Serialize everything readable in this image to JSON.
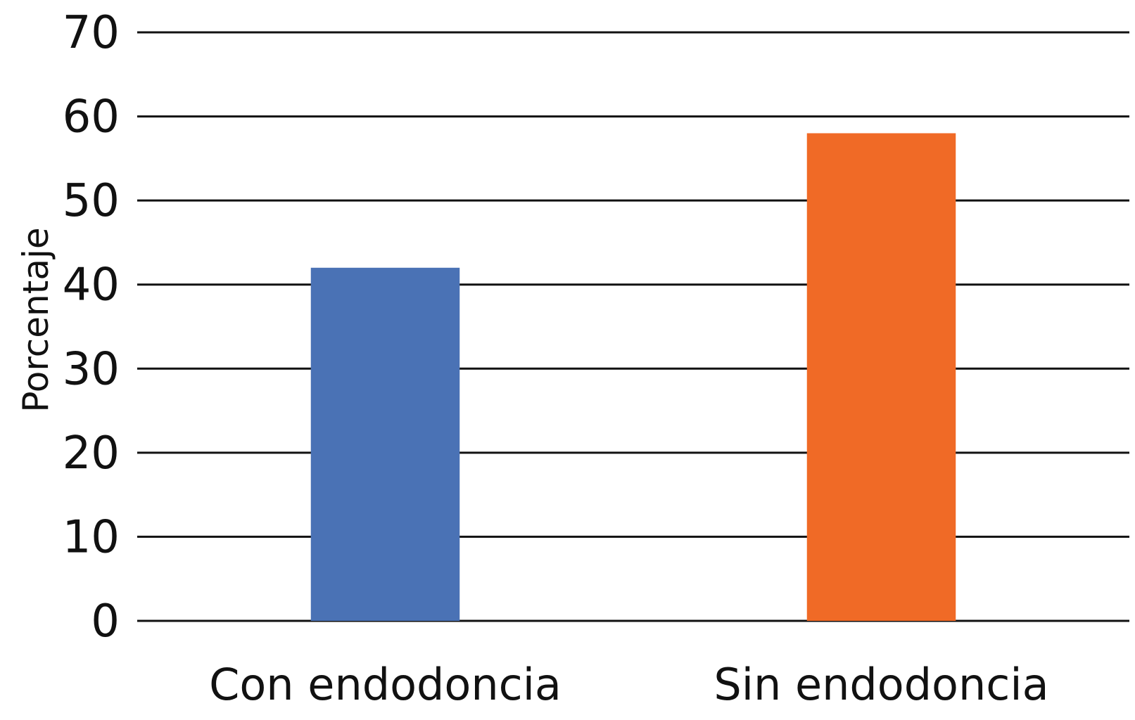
{
  "chart_data": {
    "type": "bar",
    "categories": [
      "Con endodoncia",
      "Sin endodoncia"
    ],
    "values": [
      42,
      58
    ],
    "bar_colors": [
      "#4a72b5",
      "#f06a26"
    ],
    "ylabel": "Porcentaje",
    "xlabel": "",
    "ylim": [
      0,
      70
    ],
    "yticks": [
      "0",
      "10",
      "20",
      "30",
      "40",
      "50",
      "60",
      "70"
    ],
    "grid": true,
    "legend": "none"
  }
}
